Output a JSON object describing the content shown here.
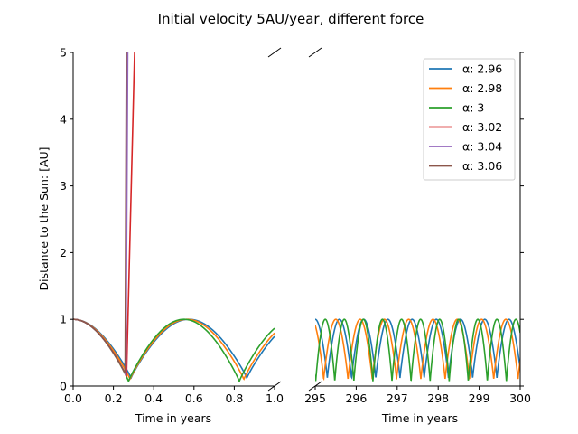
{
  "chart_data": {
    "type": "line",
    "title": "Initial velocity 5AU/year, different force",
    "ylabel": "Distance to the Sun: [AU]",
    "ylim": [
      0,
      5
    ],
    "yticks": [
      "0",
      "1",
      "2",
      "3",
      "4",
      "5"
    ],
    "broken_x_axis": true,
    "left_panel": {
      "xlabel": "Time in years",
      "xlim": [
        0,
        1
      ],
      "xticks": [
        "0.0",
        "0.2",
        "0.4",
        "0.6",
        "0.8",
        "1.0"
      ]
    },
    "right_panel": {
      "xlabel": "Time in years",
      "xlim": [
        295,
        300
      ],
      "xticks": [
        "295",
        "296",
        "297",
        "298",
        "299",
        "300"
      ]
    },
    "legend_position": "top-right",
    "series": [
      {
        "name": "α: 2.96",
        "color": "#1f77b4",
        "min_r": 0.12,
        "period_left": 0.575,
        "period_right": 0.5909,
        "phase_right": 0.0
      },
      {
        "name": "α: 2.98",
        "color": "#ff7f0e",
        "min_r": 0.1,
        "period_left": 0.565,
        "period_right": 0.5926,
        "phase_right": 0.09
      },
      {
        "name": "α: 3",
        "color": "#2ca02c",
        "min_r": 0.07,
        "period_left": 0.55,
        "period_right": 0.4651,
        "phase_right": 0.22
      },
      {
        "name": "α: 3.02",
        "color": "#d62728",
        "escape_from": 0.265,
        "escape_to": 0.31
      },
      {
        "name": "α: 3.04",
        "color": "#9467bd",
        "escape_from": 0.262,
        "escape_to": 0.272
      },
      {
        "name": "α: 3.06",
        "color": "#8c564b",
        "escape_from": 0.258,
        "escape_to": 0.265
      }
    ]
  }
}
